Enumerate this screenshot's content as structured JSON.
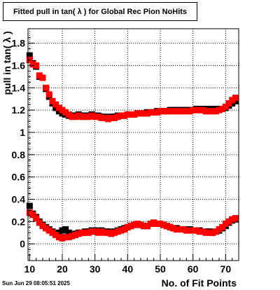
{
  "page": {
    "title": "Fitted pull in tan( λ ) for Global Rec Pion NoHits",
    "timestamp": "Sun Jun 29 08:05:51 2025"
  },
  "chart_data": {
    "type": "scatter",
    "title": "Fitted pull in tan( λ ) for Global Rec Pion NoHits",
    "xlabel": "No. of Fit Points",
    "ylabel": "pull in tan( λ )",
    "xlim": [
      9.5,
      74
    ],
    "ylim": [
      -0.15,
      1.93
    ],
    "xticks": [
      10,
      20,
      30,
      40,
      50,
      60,
      70
    ],
    "yticks": [
      0,
      0.2,
      0.4,
      0.6,
      0.8,
      1,
      1.2,
      1.4,
      1.6,
      1.8
    ],
    "grid": true,
    "marker": "square",
    "series": [
      {
        "color": "#000000",
        "x": [
          10,
          11,
          12,
          13,
          14,
          15,
          16,
          17,
          18,
          19,
          20,
          21,
          22,
          23,
          24,
          25,
          26,
          27,
          28,
          29,
          30,
          31,
          32,
          33,
          34,
          35,
          36,
          37,
          38,
          39,
          40,
          41,
          42,
          43,
          44,
          45,
          46,
          47,
          48,
          49,
          50,
          51,
          52,
          53,
          54,
          55,
          56,
          57,
          58,
          59,
          60,
          61,
          62,
          63,
          64,
          65,
          66,
          67,
          68,
          69,
          70,
          71,
          72,
          73
        ],
        "y": [
          1.69,
          1.62,
          1.59,
          1.5,
          1.49,
          1.39,
          1.32,
          1.26,
          1.22,
          1.19,
          1.17,
          1.16,
          1.15,
          1.15,
          1.15,
          1.16,
          1.15,
          1.15,
          1.15,
          1.16,
          1.15,
          1.15,
          1.14,
          1.14,
          1.13,
          1.14,
          1.14,
          1.15,
          1.15,
          1.15,
          1.16,
          1.16,
          1.16,
          1.17,
          1.17,
          1.17,
          1.18,
          1.18,
          1.18,
          1.19,
          1.19,
          1.19,
          1.19,
          1.2,
          1.2,
          1.2,
          1.2,
          1.2,
          1.2,
          1.2,
          1.2,
          1.21,
          1.21,
          1.21,
          1.21,
          1.21,
          1.21,
          1.21,
          1.21,
          1.21,
          1.22,
          1.24,
          1.26,
          1.28
        ],
        "y2": [
          0.34,
          0.27,
          0.24,
          0.2,
          0.17,
          0.15,
          0.13,
          0.11,
          0.09,
          0.1,
          0.12,
          0.13,
          0.1,
          0.08,
          0.09,
          0.1,
          0.1,
          0.11,
          0.11,
          0.12,
          0.12,
          0.11,
          0.12,
          0.11,
          0.11,
          0.1,
          0.11,
          0.12,
          0.13,
          0.14,
          0.15,
          0.16,
          0.17,
          0.18,
          0.17,
          0.16,
          0.16,
          0.18,
          0.19,
          0.18,
          0.18,
          0.17,
          0.16,
          0.15,
          0.14,
          0.14,
          0.13,
          0.13,
          0.13,
          0.13,
          0.12,
          0.12,
          0.12,
          0.11,
          0.11,
          0.11,
          0.1,
          0.11,
          0.12,
          0.14,
          0.16,
          0.19,
          0.21,
          0.22
        ]
      },
      {
        "color": "#ff0000",
        "x": [
          10,
          11,
          12,
          13,
          14,
          15,
          16,
          17,
          18,
          19,
          20,
          21,
          22,
          23,
          24,
          25,
          26,
          27,
          28,
          29,
          30,
          31,
          32,
          33,
          34,
          35,
          36,
          37,
          38,
          39,
          40,
          41,
          42,
          43,
          44,
          45,
          46,
          47,
          48,
          49,
          50,
          51,
          52,
          53,
          54,
          55,
          56,
          57,
          58,
          59,
          60,
          61,
          62,
          63,
          64,
          65,
          66,
          67,
          68,
          69,
          70,
          71,
          72,
          73
        ],
        "y": [
          1.65,
          1.61,
          1.6,
          1.51,
          1.49,
          1.4,
          1.34,
          1.28,
          1.25,
          1.22,
          1.2,
          1.18,
          1.16,
          1.14,
          1.14,
          1.15,
          1.14,
          1.14,
          1.14,
          1.15,
          1.14,
          1.14,
          1.13,
          1.13,
          1.12,
          1.13,
          1.13,
          1.14,
          1.15,
          1.15,
          1.16,
          1.16,
          1.16,
          1.17,
          1.17,
          1.17,
          1.17,
          1.18,
          1.18,
          1.18,
          1.19,
          1.19,
          1.19,
          1.19,
          1.19,
          1.19,
          1.19,
          1.19,
          1.19,
          1.19,
          1.2,
          1.2,
          1.2,
          1.2,
          1.19,
          1.19,
          1.19,
          1.19,
          1.2,
          1.21,
          1.23,
          1.26,
          1.29,
          1.31
        ],
        "y2": [
          0.28,
          0.26,
          0.23,
          0.19,
          0.16,
          0.14,
          0.12,
          0.1,
          0.08,
          0.06,
          0.05,
          0.06,
          0.06,
          0.07,
          0.08,
          0.09,
          0.1,
          0.1,
          0.1,
          0.11,
          0.11,
          0.1,
          0.11,
          0.1,
          0.1,
          0.09,
          0.1,
          0.11,
          0.12,
          0.13,
          0.15,
          0.16,
          0.17,
          0.18,
          0.17,
          0.16,
          0.16,
          0.18,
          0.19,
          0.18,
          0.18,
          0.17,
          0.16,
          0.15,
          0.14,
          0.13,
          0.13,
          0.13,
          0.12,
          0.12,
          0.12,
          0.12,
          0.11,
          0.11,
          0.1,
          0.1,
          0.1,
          0.11,
          0.13,
          0.15,
          0.18,
          0.2,
          0.22,
          0.23
        ]
      }
    ]
  }
}
